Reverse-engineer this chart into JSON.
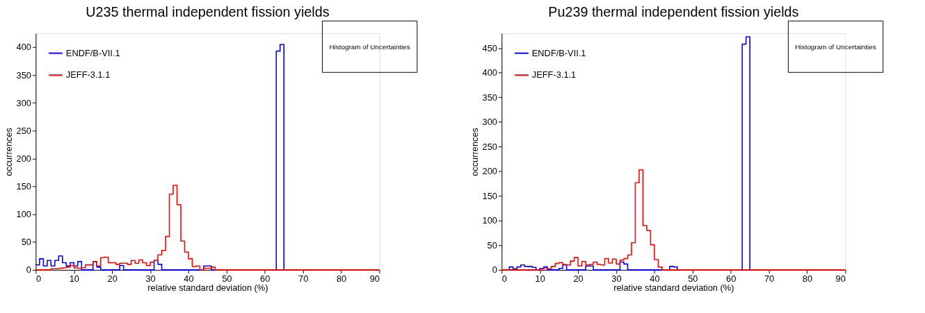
{
  "chart_data": [
    {
      "type": "histogram",
      "title": "U235 thermal independent fission yields",
      "xlabel": "relative standard deviation (%)",
      "ylabel": "occurrences",
      "bins": [
        0,
        1,
        2,
        3,
        4,
        5,
        6,
        7,
        8,
        9,
        10,
        11,
        12,
        13,
        14,
        15,
        16,
        17,
        18,
        19,
        20,
        21,
        22,
        23,
        24,
        25,
        26,
        27,
        28,
        29,
        30,
        31,
        32,
        33,
        34,
        35,
        36,
        37,
        38,
        39,
        40,
        41,
        42,
        43,
        44,
        45,
        46,
        47,
        48,
        49,
        50,
        51,
        52,
        53,
        54,
        55,
        56,
        57,
        58,
        59,
        60,
        61,
        62,
        63,
        64,
        65,
        66,
        67,
        68,
        69,
        70,
        71,
        72,
        73,
        74,
        75,
        76,
        77,
        78,
        79,
        80,
        81,
        82,
        83,
        84,
        85,
        86,
        87,
        88,
        89,
        90
      ],
      "series": [
        {
          "name": "ENDF/B-VII.1",
          "color": "#0000ff",
          "values": [
            9,
            20,
            7,
            17,
            7,
            17,
            25,
            13,
            7,
            13,
            7,
            15,
            0,
            0,
            0,
            15,
            5,
            0,
            0,
            0,
            0,
            0,
            8,
            0,
            0,
            0,
            0,
            0,
            0,
            0,
            0,
            17,
            10,
            0,
            0,
            0,
            0,
            0,
            0,
            0,
            0,
            0,
            0,
            0,
            7,
            7,
            0,
            0,
            0,
            0,
            0,
            0,
            0,
            0,
            0,
            0,
            0,
            0,
            0,
            0,
            0,
            0,
            0,
            393,
            405,
            0,
            0,
            0,
            0,
            0,
            0,
            0,
            0,
            0,
            0,
            0,
            0,
            0,
            0,
            0,
            0,
            0,
            0,
            0,
            0,
            0,
            0,
            0,
            0,
            0
          ]
        },
        {
          "name": "JEFF-3.1.1",
          "color": "#ff0000",
          "values": [
            0,
            0,
            0,
            0,
            2,
            2,
            3,
            4,
            5,
            8,
            4,
            3,
            4,
            9,
            9,
            15,
            7,
            22,
            23,
            13,
            13,
            10,
            12,
            12,
            10,
            17,
            12,
            18,
            13,
            8,
            14,
            17,
            27,
            35,
            60,
            136,
            152,
            117,
            52,
            32,
            20,
            6,
            7,
            0,
            3,
            3,
            5,
            0,
            0,
            0,
            0,
            0,
            0,
            0,
            0,
            0,
            0,
            0,
            0,
            0,
            0,
            0,
            0,
            0,
            0,
            0,
            0,
            0,
            0,
            0,
            0,
            0,
            0,
            0,
            0,
            0,
            0,
            0,
            0,
            0,
            0,
            0,
            0,
            0,
            0,
            0,
            0,
            0,
            0,
            0
          ]
        }
      ],
      "xlim": [
        0,
        90
      ],
      "xticks": [
        0,
        10,
        20,
        30,
        40,
        50,
        60,
        70,
        80,
        90
      ],
      "ylim": [
        0,
        425
      ],
      "yticks": [
        0,
        50,
        100,
        150,
        200,
        250,
        300,
        350,
        400
      ],
      "legend": "top left",
      "annotations": [
        "Histogram of Uncertainties"
      ]
    },
    {
      "type": "histogram",
      "title": "Pu239 thermal independent fission yields",
      "xlabel": "relative standard deviation (%)",
      "ylabel": "occurrences",
      "bins": [
        0,
        1,
        2,
        3,
        4,
        5,
        6,
        7,
        8,
        9,
        10,
        11,
        12,
        13,
        14,
        15,
        16,
        17,
        18,
        19,
        20,
        21,
        22,
        23,
        24,
        25,
        26,
        27,
        28,
        29,
        30,
        31,
        32,
        33,
        34,
        35,
        36,
        37,
        38,
        39,
        40,
        41,
        42,
        43,
        44,
        45,
        46,
        47,
        48,
        49,
        50,
        51,
        52,
        53,
        54,
        55,
        56,
        57,
        58,
        59,
        60,
        61,
        62,
        63,
        64,
        65,
        66,
        67,
        68,
        69,
        70,
        71,
        72,
        73,
        74,
        75,
        76,
        77,
        78,
        79,
        80,
        81,
        82,
        83,
        84,
        85,
        86,
        87,
        88,
        89,
        90
      ],
      "series": [
        {
          "name": "ENDF/B-VII.1",
          "color": "#0000ff",
          "values": [
            0,
            0,
            6,
            2,
            6,
            10,
            7,
            7,
            5,
            0,
            3,
            6,
            0,
            0,
            0,
            3,
            10,
            0,
            0,
            0,
            0,
            0,
            8,
            8,
            0,
            0,
            0,
            0,
            0,
            0,
            0,
            16,
            12,
            0,
            0,
            0,
            0,
            0,
            0,
            0,
            0,
            0,
            0,
            0,
            7,
            6,
            0,
            0,
            0,
            0,
            0,
            0,
            0,
            0,
            0,
            0,
            0,
            0,
            0,
            0,
            0,
            0,
            0,
            458,
            473,
            0,
            0,
            0,
            0,
            0,
            0,
            0,
            0,
            0,
            0,
            0,
            0,
            0,
            0,
            0,
            0,
            0,
            0,
            0,
            0,
            0,
            0,
            0,
            0,
            0
          ]
        },
        {
          "name": "JEFF-3.1.1",
          "color": "#ff0000",
          "values": [
            0,
            0,
            0,
            0,
            0,
            0,
            0,
            0,
            0,
            0,
            2,
            4,
            2,
            7,
            13,
            15,
            11,
            10,
            18,
            25,
            8,
            17,
            10,
            11,
            16,
            11,
            10,
            23,
            14,
            22,
            12,
            20,
            23,
            30,
            55,
            177,
            203,
            90,
            80,
            51,
            21,
            6,
            0,
            0,
            0,
            0,
            0,
            0,
            0,
            0,
            0,
            0,
            0,
            0,
            0,
            0,
            0,
            0,
            0,
            0,
            0,
            0,
            0,
            0,
            0,
            0,
            0,
            0,
            0,
            0,
            0,
            0,
            0,
            0,
            0,
            0,
            0,
            0,
            0,
            0,
            0,
            0,
            0,
            0,
            0,
            0,
            0,
            0,
            0,
            0
          ]
        }
      ],
      "xlim": [
        0,
        90
      ],
      "xticks": [
        0,
        10,
        20,
        30,
        40,
        50,
        60,
        70,
        80,
        90
      ],
      "ylim": [
        0,
        480
      ],
      "yticks": [
        0,
        50,
        100,
        150,
        200,
        250,
        300,
        350,
        400,
        450
      ],
      "legend": "top left",
      "annotations": [
        "Histogram of Uncertainties"
      ]
    }
  ]
}
